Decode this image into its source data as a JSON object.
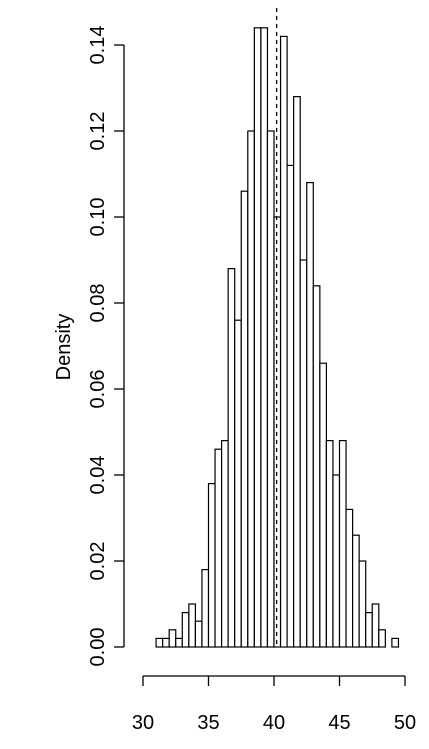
{
  "chart_data": {
    "type": "bar",
    "title": "",
    "xlabel": "",
    "ylabel": "Density",
    "bin_width": 0.5,
    "bin_start": 31,
    "values": [
      0.002,
      0.002,
      0.004,
      0.002,
      0.008,
      0.01,
      0.006,
      0.018,
      0.038,
      0.046,
      0.048,
      0.088,
      0.076,
      0.106,
      0.12,
      0.144,
      0.144,
      0.12,
      0.1,
      0.142,
      0.112,
      0.128,
      0.09,
      0.108,
      0.084,
      0.066,
      0.048,
      0.04,
      0.048,
      0.032,
      0.026,
      0.02,
      0.008,
      0.01,
      0.004,
      0.0,
      0.002
    ],
    "xlim": [
      30,
      50
    ],
    "ylim": [
      0.0,
      0.14
    ],
    "x_ticks": [
      30,
      35,
      40,
      45,
      50
    ],
    "x_tick_labels": [
      "30",
      "35",
      "40",
      "45",
      "50"
    ],
    "y_ticks": [
      0.0,
      0.02,
      0.04,
      0.06,
      0.08,
      0.1,
      0.12,
      0.14
    ],
    "y_tick_labels": [
      "0.00",
      "0.02",
      "0.04",
      "0.06",
      "0.08",
      "0.10",
      "0.12",
      "0.14"
    ],
    "reference_line": {
      "x": 40.2,
      "style": "dashed"
    },
    "grid": false,
    "legend": "none",
    "bar_fill": "#ffffff",
    "bar_stroke": "#000000"
  }
}
